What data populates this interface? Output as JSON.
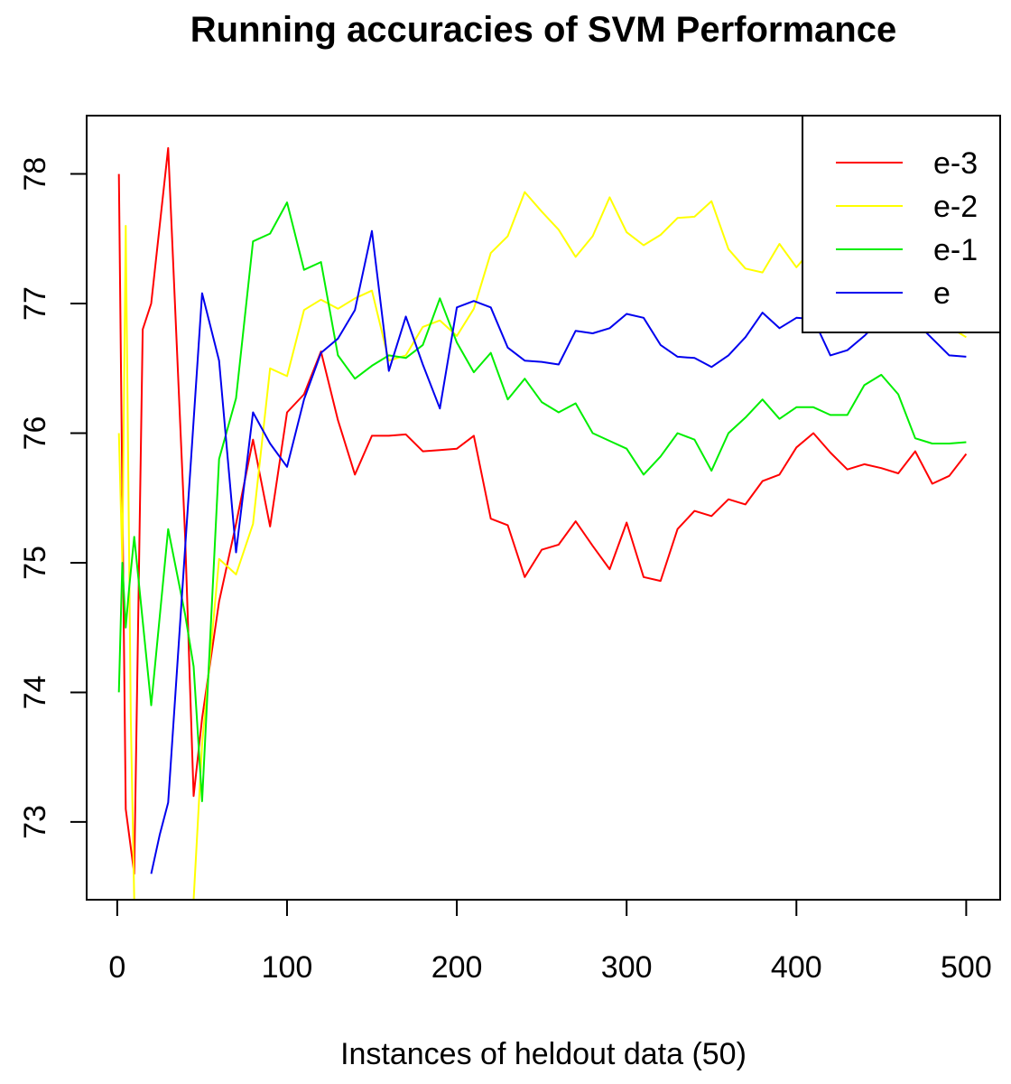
{
  "chart_data": {
    "type": "line",
    "title": "Running accuracies of SVM Performance",
    "xlabel": "Instances of heldout data (50)",
    "ylabel": "",
    "xlim": [
      -18,
      520
    ],
    "ylim": [
      72.4,
      78.45
    ],
    "xticks": [
      0,
      100,
      200,
      300,
      400,
      500
    ],
    "yticks": [
      73,
      74,
      75,
      76,
      77,
      78
    ],
    "legend_position": "top-right",
    "series": [
      {
        "name": "e-3",
        "color": "#ff0000",
        "x": [
          1,
          5,
          10,
          15,
          20,
          30,
          40,
          45,
          50,
          60,
          70,
          80,
          90,
          100,
          110,
          120,
          130,
          140,
          150,
          160,
          170,
          180,
          190,
          200,
          210,
          220,
          230,
          240,
          250,
          260,
          270,
          280,
          290,
          300,
          310,
          320,
          330,
          340,
          350,
          360,
          370,
          380,
          390,
          400,
          410,
          420,
          430,
          440,
          450,
          460,
          470,
          480,
          490,
          500
        ],
        "values": [
          78.0,
          73.1,
          72.6,
          76.8,
          77.0,
          78.2,
          75.2,
          73.2,
          73.8,
          74.7,
          75.3,
          75.95,
          75.28,
          76.16,
          76.3,
          76.63,
          76.1,
          75.68,
          75.98,
          75.98,
          75.99,
          75.86,
          75.87,
          75.88,
          75.98,
          75.34,
          75.29,
          74.89,
          75.1,
          75.14,
          75.32,
          75.13,
          74.95,
          75.31,
          74.89,
          74.86,
          75.26,
          75.4,
          75.36,
          75.49,
          75.45,
          75.63,
          75.68,
          75.89,
          76.0,
          75.85,
          75.72,
          75.76,
          75.73,
          75.69,
          75.86,
          75.61,
          75.67,
          75.84
        ]
      },
      {
        "name": "e-2",
        "color": "#ffff00",
        "x": [
          1,
          3,
          5,
          8,
          10,
          45,
          50,
          60,
          70,
          80,
          90,
          100,
          110,
          120,
          130,
          140,
          150,
          160,
          170,
          180,
          190,
          200,
          210,
          220,
          230,
          240,
          250,
          260,
          270,
          280,
          290,
          300,
          310,
          320,
          330,
          340,
          350,
          360,
          370,
          380,
          390,
          400,
          410,
          420,
          430,
          440,
          450,
          460,
          470,
          480,
          490,
          500
        ],
        "values": [
          76.0,
          75.0,
          77.6,
          73.8,
          72.4,
          72.4,
          73.6,
          75.03,
          74.91,
          75.3,
          76.5,
          76.44,
          76.95,
          77.03,
          76.96,
          77.04,
          77.1,
          76.56,
          76.6,
          76.82,
          76.87,
          76.75,
          76.96,
          77.39,
          77.52,
          77.86,
          77.71,
          77.57,
          77.36,
          77.52,
          77.82,
          77.55,
          77.45,
          77.53,
          77.66,
          77.67,
          77.79,
          77.42,
          77.27,
          77.24,
          77.46,
          77.28,
          77.43,
          77.48,
          77.17,
          77.12,
          77.14,
          77.08,
          76.98,
          76.92,
          76.82,
          76.74
        ]
      },
      {
        "name": "e-1",
        "color": "#00ee00",
        "x": [
          1,
          3,
          5,
          7,
          10,
          20,
          30,
          40,
          45,
          50,
          60,
          70,
          80,
          90,
          100,
          110,
          120,
          130,
          140,
          150,
          160,
          170,
          180,
          190,
          200,
          210,
          220,
          230,
          240,
          250,
          260,
          270,
          280,
          290,
          300,
          310,
          320,
          330,
          340,
          350,
          360,
          370,
          380,
          390,
          400,
          410,
          420,
          430,
          440,
          450,
          460,
          470,
          480,
          490,
          500
        ],
        "values": [
          74.0,
          75.0,
          74.5,
          74.8,
          75.2,
          73.9,
          75.26,
          74.6,
          74.2,
          73.16,
          75.8,
          76.27,
          77.48,
          77.54,
          77.78,
          77.26,
          77.32,
          76.6,
          76.42,
          76.52,
          76.6,
          76.58,
          76.68,
          77.04,
          76.7,
          76.47,
          76.62,
          76.26,
          76.42,
          76.24,
          76.16,
          76.23,
          76.0,
          75.94,
          75.88,
          75.68,
          75.82,
          76.0,
          75.95,
          75.71,
          76.0,
          76.12,
          76.26,
          76.11,
          76.2,
          76.2,
          76.14,
          76.14,
          76.37,
          76.45,
          76.3,
          75.96,
          75.92,
          75.92,
          75.93
        ]
      },
      {
        "name": "e",
        "color": "#0000ee",
        "x": [
          20,
          25,
          30,
          50,
          60,
          70,
          80,
          90,
          100,
          110,
          120,
          130,
          140,
          150,
          160,
          170,
          180,
          190,
          200,
          210,
          220,
          230,
          240,
          250,
          260,
          270,
          280,
          290,
          300,
          310,
          320,
          330,
          340,
          350,
          360,
          370,
          380,
          390,
          400,
          410,
          420,
          430,
          440,
          450,
          460,
          470,
          480,
          490,
          500
        ],
        "values": [
          72.6,
          72.9,
          73.15,
          77.08,
          76.56,
          75.08,
          76.16,
          75.92,
          75.74,
          76.26,
          76.62,
          76.73,
          76.95,
          77.56,
          76.48,
          76.9,
          76.53,
          76.19,
          76.97,
          77.02,
          76.97,
          76.66,
          76.56,
          76.55,
          76.53,
          76.79,
          76.77,
          76.81,
          76.92,
          76.89,
          76.68,
          76.59,
          76.58,
          76.51,
          76.6,
          76.74,
          76.93,
          76.81,
          76.89,
          76.88,
          76.6,
          76.64,
          76.75,
          76.88,
          76.86,
          76.86,
          76.73,
          76.6,
          76.59
        ]
      }
    ]
  }
}
